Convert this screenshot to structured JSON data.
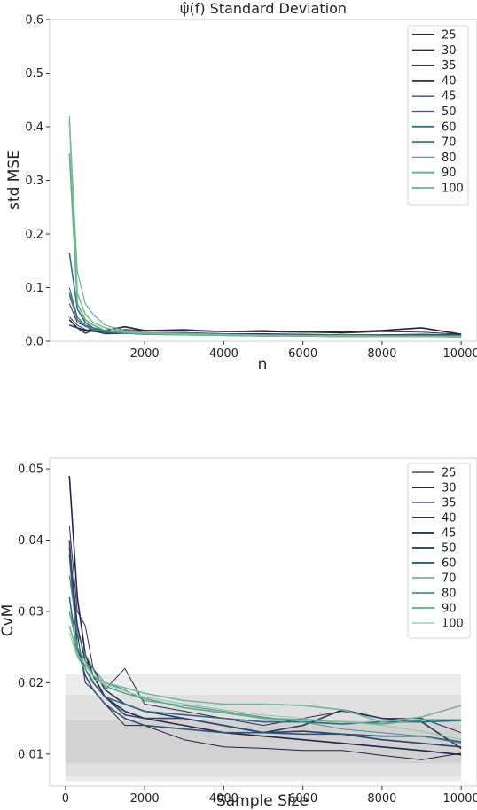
{
  "chart_data": [
    {
      "type": "line",
      "title": "ψ̂(f) Standard Deviation",
      "xlabel": "n",
      "ylabel": "std MSE",
      "xlim": [
        -400,
        10400
      ],
      "ylim": [
        0.0,
        0.6
      ],
      "xticks": [
        2000,
        4000,
        6000,
        8000,
        10000
      ],
      "xtick_labels": [
        "2000",
        "4000",
        "6000",
        "8000",
        "10000"
      ],
      "yticks": [
        0.0,
        0.1,
        0.2,
        0.3,
        0.4,
        0.5,
        0.6
      ],
      "ytick_labels": [
        "0.0",
        "0.1",
        "0.2",
        "0.3",
        "0.4",
        "0.5",
        "0.6"
      ],
      "grid": false,
      "legend": "top-right",
      "series": [
        {
          "name": "25",
          "color": "#24203f",
          "width": 1.6,
          "x": [
            100,
            300,
            500,
            700,
            1000,
            1500,
            2000,
            3000,
            4000,
            5000,
            6000,
            7000,
            8000,
            9000,
            10000
          ],
          "y": [
            0.04,
            0.025,
            0.02,
            0.022,
            0.02,
            0.027,
            0.02,
            0.02,
            0.018,
            0.018,
            0.017,
            0.017,
            0.02,
            0.025,
            0.013
          ]
        },
        {
          "name": "30",
          "color": "#2a2a4c",
          "width": 1.0,
          "x": [
            100,
            300,
            500,
            700,
            1000,
            1500,
            2000,
            3000,
            4000,
            5000,
            6000,
            7000,
            8000,
            9000,
            10000
          ],
          "y": [
            0.07,
            0.035,
            0.028,
            0.02,
            0.017,
            0.022,
            0.02,
            0.022,
            0.018,
            0.02,
            0.017,
            0.015,
            0.018,
            0.017,
            0.013
          ]
        },
        {
          "name": "35",
          "color": "#2d3054",
          "width": 1.0,
          "x": [
            100,
            300,
            500,
            700,
            1000,
            1500,
            2000,
            3000,
            4000,
            5000,
            6000,
            7000,
            8000,
            9000,
            10000
          ],
          "y": [
            0.045,
            0.03,
            0.022,
            0.018,
            0.015,
            0.02,
            0.016,
            0.016,
            0.014,
            0.014,
            0.013,
            0.012,
            0.012,
            0.013,
            0.011
          ]
        },
        {
          "name": "40",
          "color": "#2f3b5e",
          "width": 1.6,
          "x": [
            100,
            300,
            500,
            700,
            1000,
            1500,
            2000,
            3000,
            4000,
            5000,
            6000,
            7000,
            8000,
            9000,
            10000
          ],
          "y": [
            0.03,
            0.025,
            0.015,
            0.02,
            0.014,
            0.015,
            0.014,
            0.013,
            0.013,
            0.012,
            0.012,
            0.011,
            0.011,
            0.012,
            0.01
          ]
        },
        {
          "name": "45",
          "color": "#304f72",
          "width": 1.0,
          "x": [
            100,
            300,
            500,
            700,
            1000,
            1500,
            2000,
            3000,
            4000,
            5000,
            6000,
            7000,
            8000,
            9000,
            10000
          ],
          "y": [
            0.1,
            0.045,
            0.03,
            0.025,
            0.02,
            0.016,
            0.016,
            0.016,
            0.014,
            0.012,
            0.013,
            0.012,
            0.012,
            0.013,
            0.012
          ]
        },
        {
          "name": "50",
          "color": "#325f7c",
          "width": 1.0,
          "x": [
            100,
            300,
            500,
            700,
            1000,
            1500,
            2000,
            3000,
            4000,
            5000,
            6000,
            7000,
            8000,
            9000,
            10000
          ],
          "y": [
            0.085,
            0.04,
            0.03,
            0.022,
            0.018,
            0.015,
            0.014,
            0.013,
            0.012,
            0.011,
            0.011,
            0.011,
            0.01,
            0.011,
            0.01
          ]
        },
        {
          "name": "60",
          "color": "#357185",
          "width": 1.6,
          "x": [
            100,
            300,
            500,
            700,
            1000,
            1500,
            2000,
            3000,
            4000,
            5000,
            6000,
            7000,
            8000,
            9000,
            10000
          ],
          "y": [
            0.165,
            0.06,
            0.035,
            0.025,
            0.02,
            0.016,
            0.014,
            0.013,
            0.012,
            0.011,
            0.01,
            0.01,
            0.01,
            0.01,
            0.009
          ]
        },
        {
          "name": "70",
          "color": "#3d8488",
          "width": 1.6,
          "x": [
            100,
            300,
            500,
            700,
            1000,
            1500,
            2000,
            3000,
            4000,
            5000,
            6000,
            7000,
            8000,
            9000,
            10000
          ],
          "y": [
            0.09,
            0.04,
            0.028,
            0.022,
            0.018,
            0.015,
            0.013,
            0.012,
            0.011,
            0.01,
            0.01,
            0.009,
            0.009,
            0.009,
            0.009
          ]
        },
        {
          "name": "80",
          "color": "#5a9f8a",
          "width": 1.0,
          "x": [
            100,
            300,
            500,
            700,
            1000,
            1500,
            2000,
            3000,
            4000,
            5000,
            6000,
            7000,
            8000,
            9000,
            10000
          ],
          "y": [
            0.42,
            0.13,
            0.07,
            0.05,
            0.03,
            0.02,
            0.017,
            0.015,
            0.013,
            0.012,
            0.011,
            0.011,
            0.01,
            0.01,
            0.01
          ]
        },
        {
          "name": "90",
          "color": "#63ae82",
          "width": 1.6,
          "x": [
            100,
            300,
            500,
            700,
            1000,
            1500,
            2000,
            3000,
            4000,
            5000,
            6000,
            7000,
            8000,
            9000,
            10000
          ],
          "y": [
            0.35,
            0.07,
            0.04,
            0.03,
            0.02,
            0.016,
            0.014,
            0.012,
            0.011,
            0.01,
            0.01,
            0.009,
            0.009,
            0.009,
            0.008
          ]
        },
        {
          "name": "100",
          "color": "#7cbd94",
          "width": 1.6,
          "x": [
            100,
            300,
            500,
            700,
            1000,
            1500,
            2000,
            3000,
            4000,
            5000,
            6000,
            7000,
            8000,
            9000,
            10000
          ],
          "y": [
            0.41,
            0.09,
            0.05,
            0.035,
            0.025,
            0.018,
            0.015,
            0.013,
            0.012,
            0.011,
            0.01,
            0.01,
            0.009,
            0.009,
            0.009
          ]
        }
      ]
    },
    {
      "type": "line",
      "title": "",
      "xlabel": "Sample Size",
      "ylabel": "CvM",
      "xlim": [
        -400,
        10400
      ],
      "ylim": [
        0.0055,
        0.0515
      ],
      "xticks": [
        0,
        2000,
        4000,
        6000,
        8000,
        10000
      ],
      "xtick_labels": [
        "0",
        "2000",
        "4000",
        "6000",
        "8000",
        "10000"
      ],
      "yticks": [
        0.01,
        0.02,
        0.03,
        0.04,
        0.05
      ],
      "ytick_labels": [
        "0.01",
        "0.02",
        "0.03",
        "0.04",
        "0.05"
      ],
      "grid": false,
      "legend": "top-right",
      "bands": [
        {
          "y0": 0.0062,
          "y1": 0.0212,
          "color": "#ececec"
        },
        {
          "y0": 0.0068,
          "y1": 0.0183,
          "color": "#e0e0e0"
        },
        {
          "y0": 0.0087,
          "y1": 0.0147,
          "color": "#d2d2d2"
        }
      ],
      "band_x": [
        0,
        10000
      ],
      "series": [
        {
          "name": "25",
          "color": "#24203f",
          "width": 1.0,
          "x": [
            100,
            300,
            500,
            700,
            1000,
            1500,
            2000,
            3000,
            4000,
            5000,
            6000,
            7000,
            8000,
            9000,
            10000
          ],
          "y": [
            0.035,
            0.027,
            0.02,
            0.019,
            0.017,
            0.014,
            0.014,
            0.012,
            0.011,
            0.0108,
            0.0105,
            0.0105,
            0.0098,
            0.0092,
            0.0101
          ]
        },
        {
          "name": "30",
          "color": "#26244a",
          "width": 1.6,
          "x": [
            100,
            300,
            500,
            700,
            1000,
            1500,
            2000,
            3000,
            4000,
            5000,
            6000,
            7000,
            8000,
            9000,
            10000
          ],
          "y": [
            0.049,
            0.032,
            0.024,
            0.021,
            0.018,
            0.016,
            0.015,
            0.014,
            0.013,
            0.0125,
            0.012,
            0.0115,
            0.011,
            0.0105,
            0.0099
          ]
        },
        {
          "name": "35",
          "color": "#2b2c55",
          "width": 1.0,
          "x": [
            100,
            300,
            500,
            700,
            1000,
            1500,
            2000,
            3000,
            4000,
            5000,
            6000,
            7000,
            8000,
            9000,
            10000
          ],
          "y": [
            0.042,
            0.03,
            0.028,
            0.022,
            0.019,
            0.022,
            0.017,
            0.016,
            0.015,
            0.014,
            0.015,
            0.016,
            0.015,
            0.015,
            0.013
          ]
        },
        {
          "name": "40",
          "color": "#2d3460",
          "width": 1.6,
          "x": [
            100,
            300,
            500,
            700,
            1000,
            1500,
            2000,
            3000,
            4000,
            5000,
            6000,
            7000,
            8000,
            9000,
            10000
          ],
          "y": [
            0.039,
            0.028,
            0.023,
            0.022,
            0.019,
            0.017,
            0.016,
            0.015,
            0.014,
            0.013,
            0.014,
            0.0162,
            0.015,
            0.0145,
            0.0108
          ]
        },
        {
          "name": "45",
          "color": "#2f416b",
          "width": 1.6,
          "x": [
            100,
            300,
            500,
            700,
            1000,
            1500,
            2000,
            3000,
            4000,
            5000,
            6000,
            7000,
            8000,
            9000,
            10000
          ],
          "y": [
            0.04,
            0.025,
            0.022,
            0.02,
            0.018,
            0.0155,
            0.015,
            0.015,
            0.014,
            0.013,
            0.0132,
            0.0128,
            0.012,
            0.0115,
            0.011
          ]
        },
        {
          "name": "50",
          "color": "#305374",
          "width": 1.6,
          "x": [
            100,
            300,
            500,
            700,
            1000,
            1500,
            2000,
            3000,
            4000,
            5000,
            6000,
            7000,
            8000,
            9000,
            10000
          ],
          "y": [
            0.038,
            0.025,
            0.021,
            0.019,
            0.017,
            0.015,
            0.014,
            0.0135,
            0.013,
            0.013,
            0.0128,
            0.0128,
            0.0125,
            0.0125,
            0.0117
          ]
        },
        {
          "name": "60",
          "color": "#33667f",
          "width": 1.6,
          "x": [
            100,
            300,
            500,
            700,
            1000,
            1500,
            2000,
            3000,
            4000,
            5000,
            6000,
            7000,
            8000,
            9000,
            10000
          ],
          "y": [
            0.032,
            0.024,
            0.022,
            0.02,
            0.018,
            0.017,
            0.016,
            0.0155,
            0.015,
            0.0145,
            0.0145,
            0.0142,
            0.0145,
            0.0145,
            0.0147
          ]
        },
        {
          "name": "70",
          "color": "#4f8f8c",
          "width": 1.0,
          "x": [
            100,
            300,
            500,
            700,
            1000,
            1500,
            2000,
            3000,
            4000,
            5000,
            6000,
            7000,
            8000,
            9000,
            10000
          ],
          "y": [
            0.035,
            0.027,
            0.024,
            0.022,
            0.02,
            0.019,
            0.0175,
            0.0168,
            0.016,
            0.0152,
            0.0145,
            0.0135,
            0.013,
            0.0125,
            0.0115
          ]
        },
        {
          "name": "80",
          "color": "#5aa78b",
          "width": 1.6,
          "x": [
            100,
            300,
            500,
            700,
            1000,
            1500,
            2000,
            3000,
            4000,
            5000,
            6000,
            7000,
            8000,
            9000,
            10000
          ],
          "y": [
            0.03,
            0.025,
            0.023,
            0.021,
            0.0195,
            0.0185,
            0.0178,
            0.0165,
            0.0158,
            0.015,
            0.0148,
            0.0145,
            0.0142,
            0.0148,
            0.0148
          ]
        },
        {
          "name": "90",
          "color": "#74b792",
          "width": 1.6,
          "x": [
            100,
            300,
            500,
            700,
            1000,
            1500,
            2000,
            3000,
            4000,
            5000,
            6000,
            7000,
            8000,
            9000,
            10000
          ],
          "y": [
            0.028,
            0.024,
            0.0225,
            0.021,
            0.02,
            0.0193,
            0.0185,
            0.0175,
            0.017,
            0.017,
            0.0168,
            0.0162,
            0.0145,
            0.0152,
            0.0168
          ]
        },
        {
          "name": "100",
          "color": "#8ccaa0",
          "width": 1.0,
          "x": [
            100,
            300,
            500,
            700,
            1000,
            1500,
            2000,
            3000,
            4000,
            5000,
            6000,
            7000,
            8000,
            9000,
            10000
          ],
          "y": [
            0.027,
            0.0235,
            0.022,
            0.0205,
            0.0198,
            0.0188,
            0.018,
            0.017,
            0.0162,
            0.0155,
            0.015,
            0.0145,
            0.014,
            0.0132,
            0.012
          ]
        }
      ]
    }
  ]
}
